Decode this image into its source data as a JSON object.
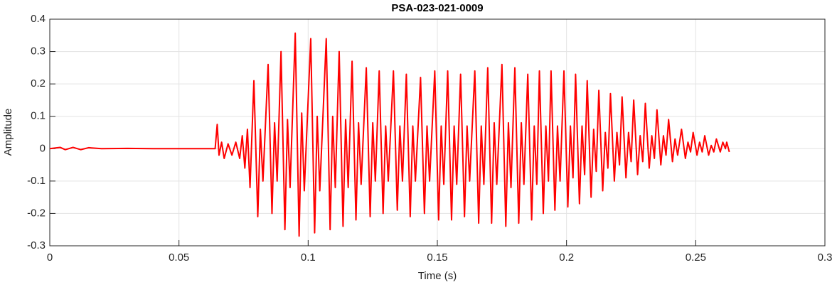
{
  "chart_data": {
    "type": "line",
    "title": "PSA-023-021-0009",
    "xlabel": "Time (s)",
    "ylabel": "Amplitude",
    "color": "#ff0000",
    "grid": true,
    "xlim": [
      0,
      0.3
    ],
    "xticks": [
      0,
      0.05,
      0.1,
      0.15,
      0.2,
      0.25,
      0.3
    ],
    "ylim": [
      -0.3,
      0.4
    ],
    "yticks": [
      -0.3,
      -0.2,
      -0.1,
      0,
      0.1,
      0.2,
      0.3,
      0.4
    ],
    "x": [
      0,
      0.004,
      0.006,
      0.009,
      0.012,
      0.015,
      0.02,
      0.03,
      0.04,
      0.05,
      0.06,
      0.064,
      0.0648,
      0.0655,
      0.0665,
      0.0675,
      0.069,
      0.0705,
      0.072,
      0.0735,
      0.0745,
      0.0755,
      0.0765,
      0.0775,
      0.079,
      0.0805,
      0.0815,
      0.0825,
      0.0845,
      0.086,
      0.087,
      0.088,
      0.0895,
      0.091,
      0.092,
      0.093,
      0.095,
      0.0965,
      0.0975,
      0.0985,
      0.101,
      0.1025,
      0.1035,
      0.1045,
      0.107,
      0.1085,
      0.1095,
      0.1105,
      0.112,
      0.1135,
      0.1145,
      0.1155,
      0.117,
      0.1185,
      0.1195,
      0.1205,
      0.1225,
      0.124,
      0.125,
      0.126,
      0.1275,
      0.129,
      0.13,
      0.131,
      0.133,
      0.1345,
      0.1355,
      0.1365,
      0.138,
      0.1395,
      0.1405,
      0.1415,
      0.1435,
      0.145,
      0.146,
      0.147,
      0.149,
      0.1505,
      0.1515,
      0.1525,
      0.154,
      0.1555,
      0.1565,
      0.1575,
      0.159,
      0.1605,
      0.1615,
      0.1625,
      0.1645,
      0.166,
      0.167,
      0.168,
      0.1695,
      0.171,
      0.172,
      0.173,
      0.175,
      0.1765,
      0.1775,
      0.1785,
      0.18,
      0.1815,
      0.1825,
      0.1835,
      0.185,
      0.1865,
      0.1875,
      0.1885,
      0.1895,
      0.191,
      0.192,
      0.193,
      0.194,
      0.1955,
      0.1965,
      0.1975,
      0.199,
      0.2005,
      0.2015,
      0.2025,
      0.2035,
      0.205,
      0.206,
      0.207,
      0.208,
      0.2095,
      0.2105,
      0.2115,
      0.2125,
      0.214,
      0.215,
      0.216,
      0.217,
      0.2185,
      0.2195,
      0.2205,
      0.2215,
      0.223,
      0.224,
      0.225,
      0.226,
      0.2275,
      0.2285,
      0.2295,
      0.2305,
      0.232,
      0.233,
      0.234,
      0.235,
      0.2365,
      0.2375,
      0.2385,
      0.2395,
      0.241,
      0.242,
      0.243,
      0.2445,
      0.246,
      0.247,
      0.248,
      0.249,
      0.2505,
      0.2515,
      0.2525,
      0.2535,
      0.255,
      0.256,
      0.257,
      0.258,
      0.2595,
      0.2605,
      0.2615,
      0.262,
      0.263
    ],
    "values": [
      0,
      0.004,
      -0.003,
      0.004,
      -0.003,
      0.003,
      0,
      0.001,
      0,
      0,
      0,
      0,
      0.075,
      -0.02,
      0.02,
      -0.03,
      0.015,
      -0.02,
      0.02,
      -0.03,
      0.04,
      -0.06,
      0.06,
      -0.12,
      0.21,
      -0.21,
      0.06,
      -0.1,
      0.26,
      -0.2,
      0.08,
      -0.1,
      0.3,
      -0.25,
      0.09,
      -0.12,
      0.357,
      -0.27,
      0.11,
      -0.13,
      0.34,
      -0.26,
      0.1,
      -0.13,
      0.34,
      -0.25,
      0.1,
      -0.12,
      0.3,
      -0.24,
      0.09,
      -0.12,
      0.27,
      -0.22,
      0.08,
      -0.11,
      0.25,
      -0.21,
      0.08,
      -0.1,
      0.24,
      -0.2,
      0.07,
      -0.1,
      0.24,
      -0.19,
      0.07,
      -0.1,
      0.23,
      -0.21,
      0.07,
      -0.1,
      0.22,
      -0.2,
      0.07,
      -0.1,
      0.24,
      -0.22,
      0.07,
      -0.11,
      0.24,
      -0.22,
      0.07,
      -0.11,
      0.23,
      -0.21,
      0.07,
      -0.1,
      0.24,
      -0.23,
      0.07,
      -0.11,
      0.25,
      -0.23,
      0.08,
      -0.11,
      0.26,
      -0.24,
      0.08,
      -0.12,
      0.25,
      -0.23,
      0.08,
      -0.11,
      0.23,
      -0.22,
      0.07,
      -0.11,
      0.24,
      -0.2,
      0.07,
      -0.1,
      0.24,
      -0.19,
      0.07,
      -0.1,
      0.24,
      -0.18,
      0.07,
      -0.09,
      0.23,
      -0.17,
      0.07,
      -0.08,
      0.21,
      -0.15,
      0.06,
      -0.07,
      0.18,
      -0.13,
      0.05,
      -0.06,
      0.17,
      -0.1,
      0.05,
      -0.05,
      0.16,
      -0.09,
      0.05,
      -0.04,
      0.15,
      -0.08,
      0.04,
      -0.04,
      0.14,
      -0.06,
      0.04,
      -0.03,
      0.12,
      -0.05,
      0.04,
      -0.02,
      0.09,
      -0.04,
      0.03,
      -0.02,
      0.06,
      -0.03,
      0.02,
      -0.01,
      0.05,
      -0.02,
      0.02,
      -0.01,
      0.04,
      -0.02,
      0.01,
      -0.01,
      0.03,
      -0.01,
      0.02,
      0,
      0.02,
      -0.01
    ]
  }
}
